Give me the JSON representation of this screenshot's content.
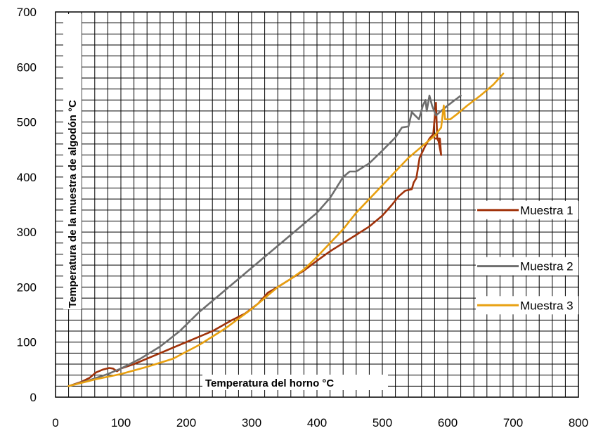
{
  "chart_data": {
    "type": "line",
    "title": "",
    "xlabel": "Temperatura del horno °C",
    "ylabel": "Temperatura de la muestra de algodón °C",
    "xlim": [
      0,
      800
    ],
    "ylim": [
      0,
      700
    ],
    "x_ticks": [
      0,
      100,
      200,
      300,
      400,
      500,
      600,
      700,
      800
    ],
    "y_ticks": [
      0,
      100,
      200,
      300,
      400,
      500,
      600,
      700
    ],
    "grid": true,
    "legend": "right",
    "series": [
      {
        "name": "Muestra 1",
        "color": "#A0320A",
        "points": [
          [
            20,
            20
          ],
          [
            40,
            28
          ],
          [
            52,
            35
          ],
          [
            62,
            45
          ],
          [
            72,
            50
          ],
          [
            82,
            53
          ],
          [
            88,
            52
          ],
          [
            94,
            47
          ],
          [
            100,
            52
          ],
          [
            120,
            60
          ],
          [
            150,
            75
          ],
          [
            180,
            90
          ],
          [
            210,
            105
          ],
          [
            240,
            120
          ],
          [
            270,
            140
          ],
          [
            290,
            152
          ],
          [
            310,
            170
          ],
          [
            325,
            190
          ],
          [
            340,
            200
          ],
          [
            360,
            215
          ],
          [
            380,
            230
          ],
          [
            400,
            248
          ],
          [
            420,
            265
          ],
          [
            440,
            280
          ],
          [
            460,
            295
          ],
          [
            480,
            310
          ],
          [
            500,
            330
          ],
          [
            515,
            350
          ],
          [
            525,
            365
          ],
          [
            535,
            375
          ],
          [
            545,
            378
          ],
          [
            548,
            390
          ],
          [
            552,
            398
          ],
          [
            557,
            435
          ],
          [
            565,
            455
          ],
          [
            572,
            470
          ],
          [
            578,
            478
          ],
          [
            582,
            535
          ],
          [
            584,
            470
          ],
          [
            586,
            465
          ],
          [
            590,
            440
          ],
          [
            588,
            470
          ],
          [
            580,
            470
          ]
        ]
      },
      {
        "name": "Muestra 2",
        "color": "#6E6E6E",
        "points": [
          [
            20,
            20
          ],
          [
            50,
            30
          ],
          [
            80,
            42
          ],
          [
            100,
            52
          ],
          [
            130,
            70
          ],
          [
            160,
            92
          ],
          [
            190,
            120
          ],
          [
            220,
            155
          ],
          [
            250,
            185
          ],
          [
            280,
            215
          ],
          [
            310,
            245
          ],
          [
            340,
            275
          ],
          [
            370,
            305
          ],
          [
            400,
            335
          ],
          [
            420,
            362
          ],
          [
            440,
            400
          ],
          [
            450,
            410
          ],
          [
            460,
            410
          ],
          [
            480,
            425
          ],
          [
            500,
            448
          ],
          [
            520,
            472
          ],
          [
            530,
            490
          ],
          [
            540,
            492
          ],
          [
            545,
            518
          ],
          [
            550,
            512
          ],
          [
            556,
            505
          ],
          [
            562,
            530
          ],
          [
            566,
            540
          ],
          [
            568,
            520
          ],
          [
            572,
            548
          ],
          [
            576,
            530
          ],
          [
            582,
            512
          ],
          [
            590,
            520
          ],
          [
            600,
            530
          ],
          [
            620,
            548
          ]
        ]
      },
      {
        "name": "Muestra 3",
        "color": "#E8A010",
        "points": [
          [
            20,
            20
          ],
          [
            60,
            32
          ],
          [
            100,
            42
          ],
          [
            140,
            55
          ],
          [
            180,
            70
          ],
          [
            220,
            95
          ],
          [
            260,
            125
          ],
          [
            300,
            160
          ],
          [
            340,
            200
          ],
          [
            360,
            215
          ],
          [
            380,
            232
          ],
          [
            400,
            255
          ],
          [
            420,
            280
          ],
          [
            440,
            305
          ],
          [
            460,
            335
          ],
          [
            480,
            360
          ],
          [
            500,
            385
          ],
          [
            520,
            410
          ],
          [
            540,
            435
          ],
          [
            560,
            455
          ],
          [
            580,
            475
          ],
          [
            590,
            490
          ],
          [
            594,
            530
          ],
          [
            596,
            505
          ],
          [
            604,
            505
          ],
          [
            615,
            515
          ],
          [
            630,
            530
          ],
          [
            650,
            548
          ],
          [
            670,
            568
          ],
          [
            685,
            588
          ]
        ]
      }
    ]
  }
}
